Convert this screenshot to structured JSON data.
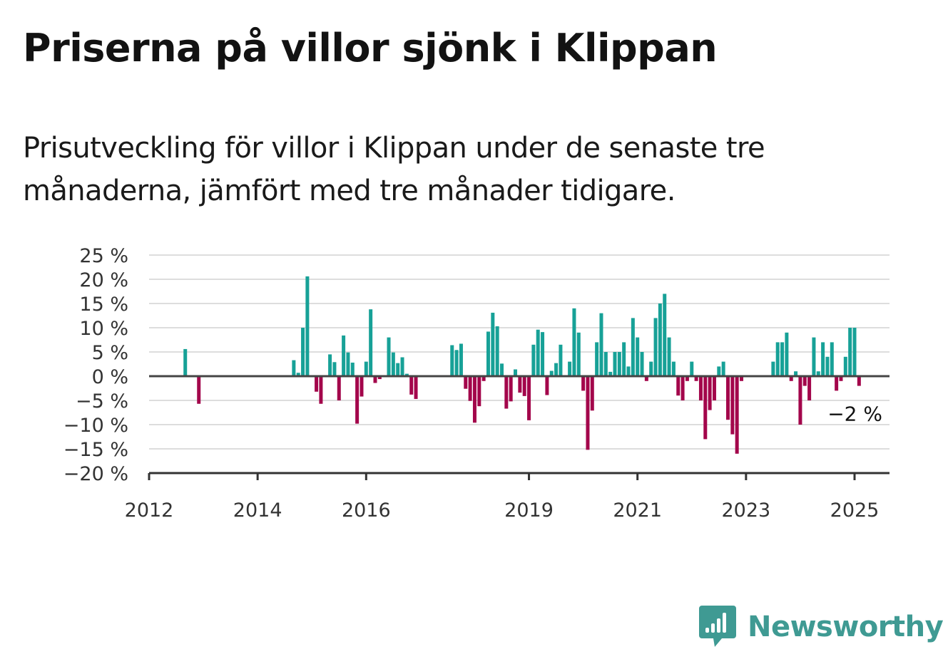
{
  "header": {
    "title": "Priserna på villor sjönk i Klippan",
    "subtitle": "Prisutveckling för villor i Klippan under de senaste tre månaderna, jämfört med tre månader tidigare."
  },
  "brand": {
    "name": "Newsworthy",
    "icon": "newsworthy-logo-icon",
    "color": "#3f9a93"
  },
  "chart_data": {
    "type": "bar",
    "x_type": "date",
    "x_range": [
      "2012-01",
      "2025-06"
    ],
    "ylim": [
      -20,
      25
    ],
    "y_ticks": [
      25,
      20,
      15,
      10,
      5,
      0,
      -5,
      -10,
      -15,
      -20
    ],
    "y_tick_labels": [
      "25 %",
      "20 %",
      "15 %",
      "10 %",
      "5 %",
      "0 %",
      "−5 %",
      "−10 %",
      "−15 %",
      "−20 %"
    ],
    "x_ticks": [
      "2012",
      "2014",
      "2016",
      "2019",
      "2021",
      "2023",
      "2025"
    ],
    "grid": true,
    "colors": {
      "positive": "#17a197",
      "negative": "#a3064b",
      "zero_line": "#444444",
      "grid": "#dddddd"
    },
    "annotation": {
      "text": "−2 %",
      "x": "2025-01",
      "y": -2
    },
    "series": [
      {
        "values": [
          {
            "x": "2012-09",
            "y": 5.6
          },
          {
            "x": "2012-12",
            "y": -5.7
          },
          {
            "x": "2014-09",
            "y": 3.3
          },
          {
            "x": "2014-10",
            "y": 0.7
          },
          {
            "x": "2014-11",
            "y": 10.0
          },
          {
            "x": "2014-12",
            "y": 20.6
          },
          {
            "x": "2015-02",
            "y": -3.2
          },
          {
            "x": "2015-03",
            "y": -5.7
          },
          {
            "x": "2015-05",
            "y": 4.5
          },
          {
            "x": "2015-06",
            "y": 2.9
          },
          {
            "x": "2015-07",
            "y": -5.0
          },
          {
            "x": "2015-08",
            "y": 8.4
          },
          {
            "x": "2015-09",
            "y": 4.9
          },
          {
            "x": "2015-10",
            "y": 2.8
          },
          {
            "x": "2015-11",
            "y": -9.8
          },
          {
            "x": "2015-12",
            "y": -4.2
          },
          {
            "x": "2016-01",
            "y": 3.0
          },
          {
            "x": "2016-02",
            "y": 13.8
          },
          {
            "x": "2016-03",
            "y": -1.4
          },
          {
            "x": "2016-04",
            "y": -0.6
          },
          {
            "x": "2016-06",
            "y": 8.0
          },
          {
            "x": "2016-07",
            "y": 4.9
          },
          {
            "x": "2016-08",
            "y": 2.7
          },
          {
            "x": "2016-09",
            "y": 3.9
          },
          {
            "x": "2016-10",
            "y": 0.5
          },
          {
            "x": "2016-11",
            "y": -3.8
          },
          {
            "x": "2016-12",
            "y": -4.7
          },
          {
            "x": "2017-08",
            "y": 6.4
          },
          {
            "x": "2017-09",
            "y": 5.4
          },
          {
            "x": "2017-10",
            "y": 6.7
          },
          {
            "x": "2017-11",
            "y": -2.6
          },
          {
            "x": "2017-12",
            "y": -5.1
          },
          {
            "x": "2018-01",
            "y": -9.6
          },
          {
            "x": "2018-02",
            "y": -6.2
          },
          {
            "x": "2018-03",
            "y": -1.0
          },
          {
            "x": "2018-04",
            "y": 9.2
          },
          {
            "x": "2018-05",
            "y": 13.1
          },
          {
            "x": "2018-06",
            "y": 10.3
          },
          {
            "x": "2018-07",
            "y": 2.6
          },
          {
            "x": "2018-08",
            "y": -6.7
          },
          {
            "x": "2018-09",
            "y": -5.2
          },
          {
            "x": "2018-10",
            "y": 1.4
          },
          {
            "x": "2018-11",
            "y": -3.4
          },
          {
            "x": "2018-12",
            "y": -4.1
          },
          {
            "x": "2019-01",
            "y": -9.1
          },
          {
            "x": "2019-02",
            "y": 6.5
          },
          {
            "x": "2019-03",
            "y": 9.6
          },
          {
            "x": "2019-04",
            "y": 9.1
          },
          {
            "x": "2019-05",
            "y": -3.9
          },
          {
            "x": "2019-06",
            "y": 1.1
          },
          {
            "x": "2019-07",
            "y": 2.7
          },
          {
            "x": "2019-08",
            "y": 6.5
          },
          {
            "x": "2019-10",
            "y": 3.0
          },
          {
            "x": "2019-11",
            "y": 14.0
          },
          {
            "x": "2019-12",
            "y": 9.0
          },
          {
            "x": "2020-01",
            "y": -3.0
          },
          {
            "x": "2020-02",
            "y": -15.2
          },
          {
            "x": "2020-03",
            "y": -7.1
          },
          {
            "x": "2020-04",
            "y": 7.0
          },
          {
            "x": "2020-05",
            "y": 13.0
          },
          {
            "x": "2020-06",
            "y": 5.0
          },
          {
            "x": "2020-07",
            "y": 0.9
          },
          {
            "x": "2020-08",
            "y": 5.0
          },
          {
            "x": "2020-09",
            "y": 5.0
          },
          {
            "x": "2020-10",
            "y": 7.0
          },
          {
            "x": "2020-11",
            "y": 2.0
          },
          {
            "x": "2020-12",
            "y": 12.0
          },
          {
            "x": "2021-01",
            "y": 8.0
          },
          {
            "x": "2021-02",
            "y": 5.0
          },
          {
            "x": "2021-03",
            "y": -1.0
          },
          {
            "x": "2021-04",
            "y": 3.0
          },
          {
            "x": "2021-05",
            "y": 12.0
          },
          {
            "x": "2021-06",
            "y": 15.0
          },
          {
            "x": "2021-07",
            "y": 17.0
          },
          {
            "x": "2021-08",
            "y": 8.0
          },
          {
            "x": "2021-09",
            "y": 3.0
          },
          {
            "x": "2021-10",
            "y": -4.0
          },
          {
            "x": "2021-11",
            "y": -5.0
          },
          {
            "x": "2021-12",
            "y": -1.0
          },
          {
            "x": "2022-01",
            "y": 3.0
          },
          {
            "x": "2022-02",
            "y": -1.0
          },
          {
            "x": "2022-03",
            "y": -5.0
          },
          {
            "x": "2022-04",
            "y": -13.0
          },
          {
            "x": "2022-05",
            "y": -7.0
          },
          {
            "x": "2022-06",
            "y": -5.0
          },
          {
            "x": "2022-07",
            "y": 2.0
          },
          {
            "x": "2022-08",
            "y": 3.0
          },
          {
            "x": "2022-09",
            "y": -9.0
          },
          {
            "x": "2022-10",
            "y": -12.0
          },
          {
            "x": "2022-11",
            "y": -16.0
          },
          {
            "x": "2022-12",
            "y": -1.0
          },
          {
            "x": "2023-07",
            "y": 3.0
          },
          {
            "x": "2023-08",
            "y": 7.0
          },
          {
            "x": "2023-09",
            "y": 7.0
          },
          {
            "x": "2023-10",
            "y": 9.0
          },
          {
            "x": "2023-11",
            "y": -1.0
          },
          {
            "x": "2023-12",
            "y": 1.0
          },
          {
            "x": "2024-01",
            "y": -10.0
          },
          {
            "x": "2024-02",
            "y": -2.0
          },
          {
            "x": "2024-03",
            "y": -5.0
          },
          {
            "x": "2024-04",
            "y": 8.0
          },
          {
            "x": "2024-05",
            "y": 1.0
          },
          {
            "x": "2024-06",
            "y": 7.0
          },
          {
            "x": "2024-07",
            "y": 4.0
          },
          {
            "x": "2024-08",
            "y": 7.0
          },
          {
            "x": "2024-09",
            "y": -3.0
          },
          {
            "x": "2024-10",
            "y": -1.0
          },
          {
            "x": "2024-11",
            "y": 4.0
          },
          {
            "x": "2024-12",
            "y": 10.0
          },
          {
            "x": "2025-01",
            "y": 10.0
          },
          {
            "x": "2025-02",
            "y": -2.0
          }
        ]
      }
    ]
  }
}
